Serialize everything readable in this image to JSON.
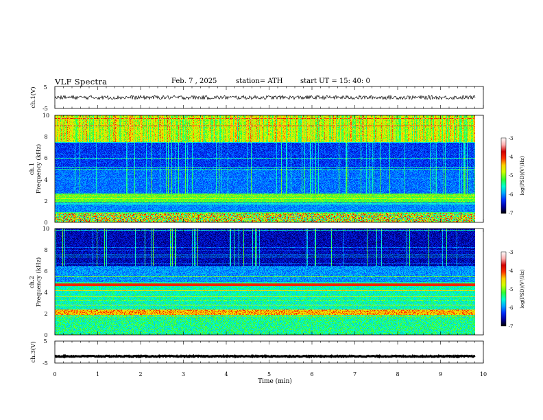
{
  "header": {
    "title": "VLF Spectra",
    "date": "Feb. 7 , 2025",
    "station": "station= ATH",
    "start": "start UT = 15: 40: 0"
  },
  "colors": {
    "cmap": [
      "#000000",
      "#0000a0",
      "#0030ff",
      "#00a8ff",
      "#00ffd0",
      "#30ff30",
      "#d0ff00",
      "#ffd000",
      "#ff3000",
      "#d00000",
      "#ffb0b0",
      "#ffffff"
    ],
    "trace": "#000000"
  },
  "chart_data": [
    {
      "type": "line",
      "ylabel": "ch.1(V)",
      "ylim": [
        -5,
        5
      ],
      "yticks": [
        "5",
        "-5"
      ],
      "series": [
        {
          "mean": 0,
          "amplitude_range": [
            -1.5,
            1.5
          ]
        }
      ]
    },
    {
      "type": "heatmap",
      "ylabel": "ch.1",
      "ylabel2": "Frequency (kHz)",
      "ylim": [
        0,
        10
      ],
      "yticks": [
        "0",
        "2",
        "4",
        "6",
        "8",
        "10"
      ],
      "colorbar": {
        "label": "log(PSD)(V²/Hz)",
        "ticks": [
          "-3",
          "-4",
          "-5",
          "-6",
          "-7"
        ],
        "range": [
          -7,
          -3
        ]
      }
    },
    {
      "type": "heatmap",
      "ylabel": "ch.2",
      "ylabel2": "Frequency (kHz)",
      "ylim": [
        0,
        10
      ],
      "yticks": [
        "0",
        "2",
        "4",
        "6",
        "8",
        "10"
      ],
      "colorbar": {
        "label": "log(PSD)(V²/Hz)",
        "ticks": [
          "-3",
          "-4",
          "-5",
          "-6",
          "-7"
        ],
        "range": [
          -7,
          -3
        ]
      }
    },
    {
      "type": "line",
      "ylabel": "ch.3(V)",
      "ylim": [
        -5,
        5
      ],
      "yticks": [
        "5",
        "-5"
      ],
      "series": [
        {
          "mean": -1.2,
          "amplitude_range": [
            -1.6,
            -0.8
          ]
        }
      ]
    }
  ],
  "xaxis": {
    "label": "Time (min)",
    "xlim": [
      0,
      10
    ],
    "ticks": [
      "0",
      "1",
      "2",
      "3",
      "4",
      "5",
      "6",
      "7",
      "8",
      "9",
      "10"
    ],
    "data_end": 9.8
  }
}
